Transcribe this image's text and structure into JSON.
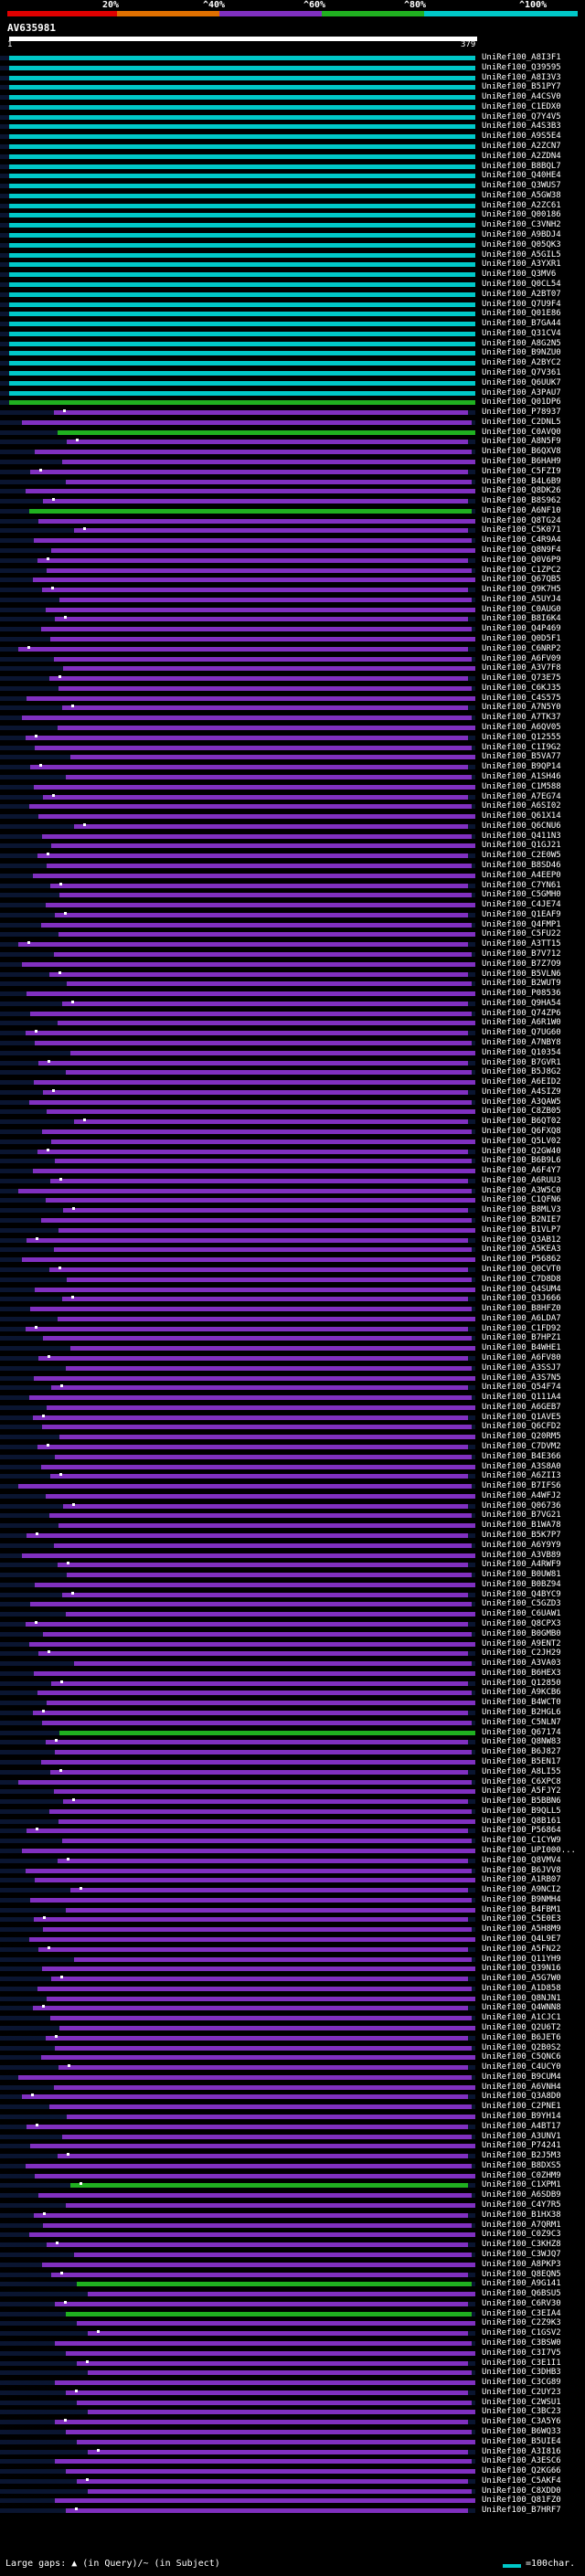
{
  "header": {
    "ticks": [
      "20%",
      "^40%",
      "^60%",
      "^80%",
      "^100%"
    ],
    "colors": [
      "#e00000",
      "#e07000",
      "#8030c0",
      "#20b020",
      "#00c8c8"
    ],
    "query_title": "AV635981",
    "query_start": "1",
    "query_end": "379"
  },
  "footer": {
    "gap_legend": "Large gaps: ▲ (in Query)/~ (in Subject)",
    "scale_label": "=100char."
  },
  "rows": [
    {
      "label": "UniRef100_A8I3F1",
      "color": "#00c8c8"
    },
    {
      "label": "UniRef100_Q39595",
      "color": "#00c8c8"
    },
    {
      "label": "UniRef100_A8I3V3",
      "color": "#00c8c8"
    },
    {
      "label": "UniRef100_B51PY7",
      "color": "#00c8c8"
    },
    {
      "label": "UniRef100_A4CSV0",
      "color": "#00c8c8"
    },
    {
      "label": "UniRef100_C1EDX0",
      "color": "#00c8c8"
    },
    {
      "label": "UniRef100_Q7Y4V5",
      "color": "#00c8c8"
    },
    {
      "label": "UniRef100_A4S3B3",
      "color": "#00c8c8"
    },
    {
      "label": "UniRef100_A9S5E4",
      "color": "#00c8c8"
    },
    {
      "label": "UniRef100_A2ZCN7",
      "color": "#00c8c8"
    },
    {
      "label": "UniRef100_A2ZDN4",
      "color": "#00c8c8"
    },
    {
      "label": "UniRef100_B8BQL7",
      "color": "#00c8c8"
    },
    {
      "label": "UniRef100_Q40HE4",
      "color": "#00c8c8"
    },
    {
      "label": "UniRef100_Q3WUS7",
      "color": "#00c8c8"
    },
    {
      "label": "UniRef100_A5GW38",
      "color": "#00c8c8"
    },
    {
      "label": "UniRef100_A2ZC61",
      "color": "#00c8c8"
    },
    {
      "label": "UniRef100_Q00186",
      "color": "#00c8c8"
    },
    {
      "label": "UniRef100_C3VNH2",
      "color": "#00c8c8"
    },
    {
      "label": "UniRef100_A9BDJ4",
      "color": "#00c8c8"
    },
    {
      "label": "UniRef100_Q05QK3",
      "color": "#00c8c8"
    },
    {
      "label": "UniRef100_A5GIL5",
      "color": "#00c8c8"
    },
    {
      "label": "UniRef100_A3YXR1",
      "color": "#00c8c8"
    },
    {
      "label": "UniRef100_Q3MV6",
      "color": "#00c8c8"
    },
    {
      "label": "UniRef100_Q0CL54",
      "color": "#00c8c8"
    },
    {
      "label": "UniRef100_A2BT07",
      "color": "#00c8c8"
    },
    {
      "label": "UniRef100_Q7U9F4",
      "color": "#00c8c8"
    },
    {
      "label": "UniRef100_Q01E86",
      "color": "#00c8c8"
    },
    {
      "label": "UniRef100_B7GA44",
      "color": "#00c8c8"
    },
    {
      "label": "UniRef100_Q31CV4",
      "color": "#00c8c8"
    },
    {
      "label": "UniRef100_A8G2N5",
      "color": "#00c8c8"
    },
    {
      "label": "UniRef100_B9NZU0",
      "color": "#00c8c8"
    },
    {
      "label": "UniRef100_A2BYC2",
      "color": "#00c8c8"
    },
    {
      "label": "UniRef100_Q7V361",
      "color": "#00c8c8"
    },
    {
      "label": "UniRef100_Q6UUK7",
      "color": "#00c8c8"
    },
    {
      "label": "UniRef100_A3PAU7",
      "color": "#00c8c8"
    },
    {
      "label": "UniRef100_Q01DP6",
      "color": "#20b020"
    },
    {
      "label": "UniRef100_P78937",
      "color": "#8030c0"
    },
    {
      "label": "UniRef100_C2DNL5",
      "color": "#8030c0"
    },
    {
      "label": "UniRef100_C0AVQ0",
      "color": "#20b020"
    },
    {
      "label": "UniRef100_A8N5F9",
      "color": "#8030c0"
    },
    {
      "label": "UniRef100_B6QXV8",
      "color": "#8030c0"
    },
    {
      "label": "UniRef100_B6HAH9",
      "color": "#8030c0"
    },
    {
      "label": "UniRef100_C5FZI9",
      "color": "#8030c0"
    },
    {
      "label": "UniRef100_B4L6B9",
      "color": "#8030c0"
    },
    {
      "label": "UniRef100_Q8DK26",
      "color": "#8030c0"
    },
    {
      "label": "UniRef100_B8S962",
      "color": "#8030c0"
    },
    {
      "label": "UniRef100_A6NF10",
      "color": "#20b020"
    },
    {
      "label": "UniRef100_Q8TG24",
      "color": "#8030c0"
    },
    {
      "label": "UniRef100_C5K071",
      "color": "#8030c0"
    },
    {
      "label": "UniRef100_C4R9A4",
      "color": "#8030c0"
    },
    {
      "label": "UniRef100_Q8N9F4",
      "color": "#8030c0"
    },
    {
      "label": "UniRef100_Q0V6P9",
      "color": "#8030c0"
    },
    {
      "label": "UniRef100_C1ZPC2",
      "color": "#8030c0"
    },
    {
      "label": "UniRef100_Q67QB5",
      "color": "#8030c0"
    },
    {
      "label": "UniRef100_Q9K7H5",
      "color": "#8030c0"
    },
    {
      "label": "UniRef100_A5UYJ4",
      "color": "#8030c0"
    },
    {
      "label": "UniRef100_C0AUG0",
      "color": "#8030c0"
    },
    {
      "label": "UniRef100_B8I6K4",
      "color": "#8030c0"
    },
    {
      "label": "UniRef100_Q4P469",
      "color": "#8030c0"
    },
    {
      "label": "UniRef100_Q0D5F1",
      "color": "#8030c0"
    },
    {
      "label": "UniRef100_C6NRP2",
      "color": "#8030c0"
    },
    {
      "label": "UniRef100_A6FV09",
      "color": "#8030c0"
    },
    {
      "label": "UniRef100_A3V7F8",
      "color": "#8030c0"
    },
    {
      "label": "UniRef100_Q73E75",
      "color": "#8030c0"
    },
    {
      "label": "UniRef100_C6KJ35",
      "color": "#8030c0"
    },
    {
      "label": "UniRef100_C4S575",
      "color": "#8030c0"
    },
    {
      "label": "UniRef100_A7N5Y0",
      "color": "#8030c0"
    },
    {
      "label": "UniRef100_A7TK37",
      "color": "#8030c0"
    },
    {
      "label": "UniRef100_A6QV05",
      "color": "#8030c0"
    },
    {
      "label": "UniRef100_Q12555",
      "color": "#8030c0"
    },
    {
      "label": "UniRef100_C1I9G2",
      "color": "#8030c0"
    },
    {
      "label": "UniRef100_B5VA77",
      "color": "#8030c0"
    },
    {
      "label": "UniRef100_B9QP14",
      "color": "#8030c0"
    },
    {
      "label": "UniRef100_A1SH46",
      "color": "#8030c0"
    },
    {
      "label": "UniRef100_C1M588",
      "color": "#8030c0"
    },
    {
      "label": "UniRef100_A7EG74",
      "color": "#8030c0"
    },
    {
      "label": "UniRef100_A6SI02",
      "color": "#8030c0"
    },
    {
      "label": "UniRef100_Q61X14",
      "color": "#8030c0"
    },
    {
      "label": "UniRef100_Q6CNU6",
      "color": "#8030c0"
    },
    {
      "label": "UniRef100_Q411N3",
      "color": "#8030c0"
    },
    {
      "label": "UniRef100_Q1GJ21",
      "color": "#8030c0"
    },
    {
      "label": "UniRef100_C2E0W5",
      "color": "#8030c0"
    },
    {
      "label": "UniRef100_B8SD46",
      "color": "#8030c0"
    },
    {
      "label": "UniRef100_A4EEP0",
      "color": "#8030c0"
    },
    {
      "label": "UniRef100_C7YN61",
      "color": "#8030c0"
    },
    {
      "label": "UniRef100_C5GMH0",
      "color": "#8030c0"
    },
    {
      "label": "UniRef100_C4JE74",
      "color": "#8030c0"
    },
    {
      "label": "UniRef100_Q1EAF9",
      "color": "#8030c0"
    },
    {
      "label": "UniRef100_Q4FMP1",
      "color": "#8030c0"
    },
    {
      "label": "UniRef100_C5FU22",
      "color": "#8030c0"
    },
    {
      "label": "UniRef100_A3TT15",
      "color": "#8030c0"
    },
    {
      "label": "UniRef100_B7V712",
      "color": "#8030c0"
    },
    {
      "label": "UniRef100_B7Z7O9",
      "color": "#8030c0"
    },
    {
      "label": "UniRef100_B5VLN6",
      "color": "#8030c0"
    },
    {
      "label": "UniRef100_B2WUT9",
      "color": "#8030c0"
    },
    {
      "label": "UniRef100_P08536",
      "color": "#8030c0"
    },
    {
      "label": "UniRef100_Q9HA54",
      "color": "#8030c0"
    },
    {
      "label": "UniRef100_Q74ZP6",
      "color": "#8030c0"
    },
    {
      "label": "UniRef100_A6R1W0",
      "color": "#8030c0"
    },
    {
      "label": "UniRef100_Q7UG60",
      "color": "#8030c0"
    },
    {
      "label": "UniRef100_A7NBY8",
      "color": "#8030c0"
    },
    {
      "label": "UniRef100_Q10354",
      "color": "#8030c0"
    },
    {
      "label": "UniRef100_B7GVR1",
      "color": "#8030c0"
    },
    {
      "label": "UniRef100_B5J8G2",
      "color": "#8030c0"
    },
    {
      "label": "UniRef100_A6EID2",
      "color": "#8030c0"
    },
    {
      "label": "UniRef100_A4SIZ9",
      "color": "#8030c0"
    },
    {
      "label": "UniRef100_A3QAW5",
      "color": "#8030c0"
    },
    {
      "label": "UniRef100_C8ZB05",
      "color": "#8030c0"
    },
    {
      "label": "UniRef100_B6QT02",
      "color": "#8030c0"
    },
    {
      "label": "UniRef100_Q6FXQ8",
      "color": "#8030c0"
    },
    {
      "label": "UniRef100_Q5LV02",
      "color": "#8030c0"
    },
    {
      "label": "UniRef100_Q2GW40",
      "color": "#8030c0"
    },
    {
      "label": "UniRef100_B6B9L6",
      "color": "#8030c0"
    },
    {
      "label": "UniRef100_A6F4Y7",
      "color": "#8030c0"
    },
    {
      "label": "UniRef100_A6RUU3",
      "color": "#8030c0"
    },
    {
      "label": "UniRef100_A3W5C0",
      "color": "#8030c0"
    },
    {
      "label": "UniRef100_C1QFN6",
      "color": "#8030c0"
    },
    {
      "label": "UniRef100_B8MLV3",
      "color": "#8030c0"
    },
    {
      "label": "UniRef100_B2NIE7",
      "color": "#8030c0"
    },
    {
      "label": "UniRef100_B1VLP7",
      "color": "#8030c0"
    },
    {
      "label": "UniRef100_Q3AB12",
      "color": "#8030c0"
    },
    {
      "label": "UniRef100_A5KEA3",
      "color": "#8030c0"
    },
    {
      "label": "UniRef100_P56862",
      "color": "#8030c0"
    },
    {
      "label": "UniRef100_Q0CVT0",
      "color": "#8030c0"
    },
    {
      "label": "UniRef100_C7D8D8",
      "color": "#8030c0"
    },
    {
      "label": "UniRef100_Q4SUM4",
      "color": "#8030c0"
    },
    {
      "label": "UniRef100_Q3J666",
      "color": "#8030c0"
    },
    {
      "label": "UniRef100_B8HFZ0",
      "color": "#8030c0"
    },
    {
      "label": "UniRef100_A6LDA7",
      "color": "#8030c0"
    },
    {
      "label": "UniRef100_C1FD92",
      "color": "#8030c0"
    },
    {
      "label": "UniRef100_B7HPZ1",
      "color": "#8030c0"
    },
    {
      "label": "UniRef100_B4WHE1",
      "color": "#8030c0"
    },
    {
      "label": "UniRef100_A6FV80",
      "color": "#8030c0"
    },
    {
      "label": "UniRef100_A3SSJ7",
      "color": "#8030c0"
    },
    {
      "label": "UniRef100_A3S7N5",
      "color": "#8030c0"
    },
    {
      "label": "UniRef100_Q54F74",
      "color": "#8030c0"
    },
    {
      "label": "UniRef100_Q111A4",
      "color": "#8030c0"
    },
    {
      "label": "UniRef100_A6GEB7",
      "color": "#8030c0"
    },
    {
      "label": "UniRef100_Q1AVE5",
      "color": "#8030c0"
    },
    {
      "label": "UniRef100_Q6CFD2",
      "color": "#8030c0"
    },
    {
      "label": "UniRef100_Q20RM5",
      "color": "#8030c0"
    },
    {
      "label": "UniRef100_C7DVM2",
      "color": "#8030c0"
    },
    {
      "label": "UniRef100_B4E366",
      "color": "#8030c0"
    },
    {
      "label": "UniRef100_A3S8A0",
      "color": "#8030c0"
    },
    {
      "label": "UniRef100_A6ZII3",
      "color": "#8030c0"
    },
    {
      "label": "UniRef100_B7IFS6",
      "color": "#8030c0"
    },
    {
      "label": "UniRef100_A4WFJ2",
      "color": "#8030c0"
    },
    {
      "label": "UniRef100_Q06736",
      "color": "#8030c0"
    },
    {
      "label": "UniRef100_B7VG21",
      "color": "#8030c0"
    },
    {
      "label": "UniRef100_B1WA78",
      "color": "#8030c0"
    },
    {
      "label": "UniRef100_B5K7P7",
      "color": "#8030c0"
    },
    {
      "label": "UniRef100_A6Y9Y9",
      "color": "#8030c0"
    },
    {
      "label": "UniRef100_A3VB89",
      "color": "#8030c0"
    },
    {
      "label": "UniRef100_A4RWF9",
      "color": "#8030c0"
    },
    {
      "label": "UniRef100_B0UW81",
      "color": "#8030c0"
    },
    {
      "label": "UniRef100_B0BZ94",
      "color": "#8030c0"
    },
    {
      "label": "UniRef100_Q4BYC9",
      "color": "#8030c0"
    },
    {
      "label": "UniRef100_C5GZD3",
      "color": "#8030c0"
    },
    {
      "label": "UniRef100_C6UAW1",
      "color": "#8030c0"
    },
    {
      "label": "UniRef100_Q8CPX3",
      "color": "#8030c0"
    },
    {
      "label": "UniRef100_B0GMB0",
      "color": "#8030c0"
    },
    {
      "label": "UniRef100_A9ENT2",
      "color": "#8030c0"
    },
    {
      "label": "UniRef100_C2JH29",
      "color": "#8030c0"
    },
    {
      "label": "UniRef100_A3VA03",
      "color": "#8030c0"
    },
    {
      "label": "UniRef100_B6HEX3",
      "color": "#8030c0"
    },
    {
      "label": "UniRef100_Q12850",
      "color": "#8030c0"
    },
    {
      "label": "UniRef100_A9KCB6",
      "color": "#8030c0"
    },
    {
      "label": "UniRef100_B4WCT0",
      "color": "#8030c0"
    },
    {
      "label": "UniRef100_B2HGL6",
      "color": "#8030c0"
    },
    {
      "label": "UniRef100_C5NLN7",
      "color": "#8030c0"
    },
    {
      "label": "UniRef100_Q67174",
      "color": "#20b020"
    },
    {
      "label": "UniRef100_Q8NW83",
      "color": "#8030c0"
    },
    {
      "label": "UniRef100_B6J827",
      "color": "#8030c0"
    },
    {
      "label": "UniRef100_B5EN17",
      "color": "#8030c0"
    },
    {
      "label": "UniRef100_A8LI55",
      "color": "#8030c0"
    },
    {
      "label": "UniRef100_C6XPC8",
      "color": "#8030c0"
    },
    {
      "label": "UniRef100_A5FJY2",
      "color": "#8030c0"
    },
    {
      "label": "UniRef100_B5BBN6",
      "color": "#8030c0"
    },
    {
      "label": "UniRef100_B9QLL5",
      "color": "#8030c0"
    },
    {
      "label": "UniRef100_Q8B161",
      "color": "#8030c0"
    },
    {
      "label": "UniRef100_P56864",
      "color": "#8030c0"
    },
    {
      "label": "UniRef100_C1CYW9",
      "color": "#8030c0"
    },
    {
      "label": "UniRef100_UPI000...",
      "color": "#8030c0"
    },
    {
      "label": "UniRef100_Q8VMV4",
      "color": "#8030c0"
    },
    {
      "label": "UniRef100_B6JVV8",
      "color": "#8030c0"
    },
    {
      "label": "UniRef100_A1RB07",
      "color": "#8030c0"
    },
    {
      "label": "UniRef100_A9NCI2",
      "color": "#8030c0"
    },
    {
      "label": "UniRef100_B9NMH4",
      "color": "#8030c0"
    },
    {
      "label": "UniRef100_B4FBM1",
      "color": "#8030c0"
    },
    {
      "label": "UniRef100_C5E0E3",
      "color": "#8030c0"
    },
    {
      "label": "UniRef100_A5H8M9",
      "color": "#8030c0"
    },
    {
      "label": "UniRef100_Q4L9E7",
      "color": "#8030c0"
    },
    {
      "label": "UniRef100_A5FN22",
      "color": "#8030c0"
    },
    {
      "label": "UniRef100_Q11YH9",
      "color": "#8030c0"
    },
    {
      "label": "UniRef100_Q39N16",
      "color": "#8030c0"
    },
    {
      "label": "UniRef100_A5G7W0",
      "color": "#8030c0"
    },
    {
      "label": "UniRef100_A1D858",
      "color": "#8030c0"
    },
    {
      "label": "UniRef100_Q8NJN1",
      "color": "#8030c0"
    },
    {
      "label": "UniRef100_Q4WNN8",
      "color": "#8030c0"
    },
    {
      "label": "UniRef100_A1CJC1",
      "color": "#8030c0"
    },
    {
      "label": "UniRef100_Q2U6T2",
      "color": "#8030c0"
    },
    {
      "label": "UniRef100_B6JET6",
      "color": "#8030c0"
    },
    {
      "label": "UniRef100_Q2B0S2",
      "color": "#8030c0"
    },
    {
      "label": "UniRef100_C5QNC6",
      "color": "#8030c0"
    },
    {
      "label": "UniRef100_C4UCY0",
      "color": "#8030c0"
    },
    {
      "label": "UniRef100_B9CUM4",
      "color": "#8030c0"
    },
    {
      "label": "UniRef100_A6VNH4",
      "color": "#8030c0"
    },
    {
      "label": "UniRef100_Q3A8D0",
      "color": "#8030c0"
    },
    {
      "label": "UniRef100_C2PNE1",
      "color": "#8030c0"
    },
    {
      "label": "UniRef100_B9YH14",
      "color": "#8030c0"
    },
    {
      "label": "UniRef100_A4BT17",
      "color": "#8030c0"
    },
    {
      "label": "UniRef100_A3UNV1",
      "color": "#8030c0"
    },
    {
      "label": "UniRef100_P74241",
      "color": "#8030c0"
    },
    {
      "label": "UniRef100_B2J5M3",
      "color": "#8030c0"
    },
    {
      "label": "UniRef100_B8DXS5",
      "color": "#8030c0"
    },
    {
      "label": "UniRef100_C0ZHM9",
      "color": "#8030c0"
    },
    {
      "label": "UniRef100_C1XPM1",
      "color": "#20b020"
    },
    {
      "label": "UniRef100_A6SDB9",
      "color": "#8030c0"
    },
    {
      "label": "UniRef100_C4Y7R5",
      "color": "#8030c0"
    },
    {
      "label": "UniRef100_B1HX38",
      "color": "#8030c0"
    },
    {
      "label": "UniRef100_A7QRM1",
      "color": "#8030c0"
    },
    {
      "label": "UniRef100_C0Z9C3",
      "color": "#8030c0"
    },
    {
      "label": "UniRef100_C3KHZ8",
      "color": "#8030c0"
    },
    {
      "label": "UniRef100_C3WJQ7",
      "color": "#8030c0"
    },
    {
      "label": "UniRef100_A8PKP3",
      "color": "#8030c0"
    },
    {
      "label": "UniRef100_Q8EQN5",
      "color": "#8030c0"
    },
    {
      "label": "UniRef100_A9G141",
      "color": "#20b020"
    },
    {
      "label": "UniRef100_Q6BSU5",
      "color": "#8030c0"
    },
    {
      "label": "UniRef100_C6RV30",
      "color": "#8030c0"
    },
    {
      "label": "UniRef100_C3EIA4",
      "color": "#20b020"
    },
    {
      "label": "UniRef100_C2Z9K3",
      "color": "#8030c0"
    },
    {
      "label": "UniRef100_C1GSV2",
      "color": "#8030c0"
    },
    {
      "label": "UniRef100_C3BSW0",
      "color": "#8030c0"
    },
    {
      "label": "UniRef100_C3I7V5",
      "color": "#8030c0"
    },
    {
      "label": "UniRef100_C3E1I1",
      "color": "#8030c0"
    },
    {
      "label": "UniRef100_C3DHB3",
      "color": "#8030c0"
    },
    {
      "label": "UniRef100_C3CG89",
      "color": "#8030c0"
    },
    {
      "label": "UniRef100_C2UY23",
      "color": "#8030c0"
    },
    {
      "label": "UniRef100_C2WSU1",
      "color": "#8030c0"
    },
    {
      "label": "UniRef100_C3BC23",
      "color": "#8030c0"
    },
    {
      "label": "UniRef100_C3A5Y6",
      "color": "#8030c0"
    },
    {
      "label": "UniRef100_B6WQ33",
      "color": "#8030c0"
    },
    {
      "label": "UniRef100_B5UIE4",
      "color": "#8030c0"
    },
    {
      "label": "UniRef100_A3I816",
      "color": "#8030c0"
    },
    {
      "label": "UniRef100_A3ESC6",
      "color": "#8030c0"
    },
    {
      "label": "UniRef100_Q2KG66",
      "color": "#8030c0"
    },
    {
      "label": "UniRef100_C5AKF4",
      "color": "#8030c0"
    },
    {
      "label": "UniRef100_C8XDD0",
      "color": "#8030c0"
    },
    {
      "label": "UniRef100_Q81FZ0",
      "color": "#8030c0"
    },
    {
      "label": "UniRef100_B7HRF7",
      "color": "#8030c0"
    }
  ]
}
